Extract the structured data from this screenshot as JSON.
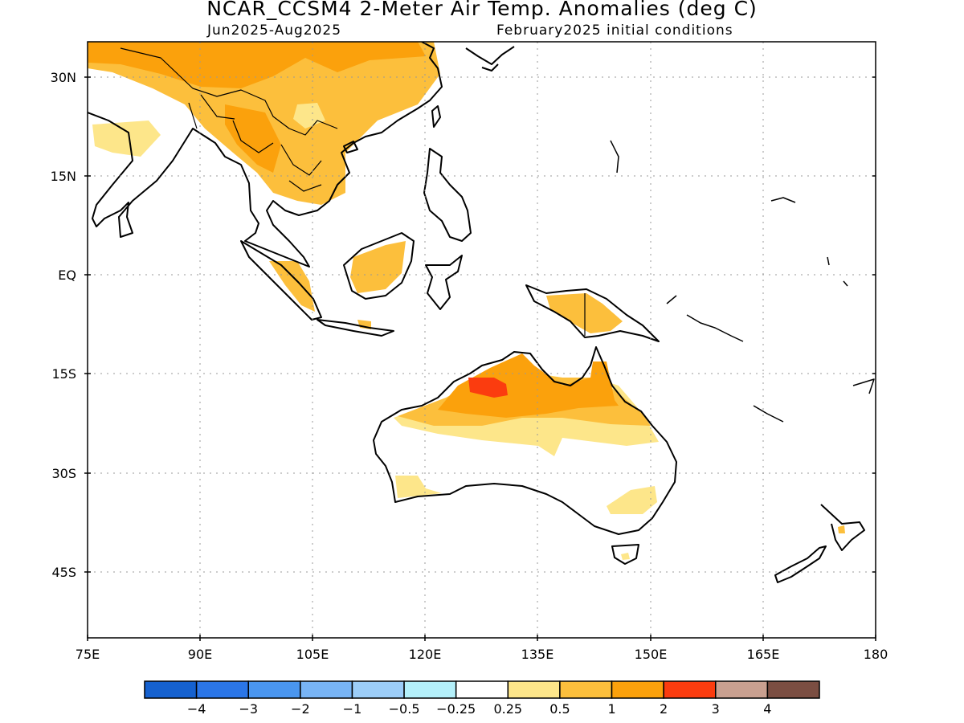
{
  "title": "NCAR_CCSM4 2-Meter Air Temp. Anomalies (deg C)",
  "subtitle_left": "Jun2025-Aug2025",
  "subtitle_right": "February2025 initial conditions",
  "lat_labels": [
    "30N",
    "15N",
    "EQ",
    "15S",
    "30S",
    "45S"
  ],
  "lon_labels": [
    "75E",
    "90E",
    "105E",
    "120E",
    "135E",
    "150E",
    "165E",
    "180"
  ],
  "colorbar": {
    "colors": [
      "#1561cf",
      "#2b76e8",
      "#4a96f0",
      "#78b4f5",
      "#9ccdf8",
      "#b4f0fa",
      "#ffffff",
      "#fde68a",
      "#fcbf3c",
      "#fba10c",
      "#fb3c0f",
      "#c9a090",
      "#7b4e42"
    ],
    "labels": [
      "-4",
      "-3",
      "-2",
      "-1",
      "-0.5",
      "-0.25",
      "0.25",
      "0.5",
      "1",
      "2",
      "3",
      "4"
    ]
  },
  "anomaly_colors": {
    "0.25-0.5": "#fde68a",
    "0.5-1": "#fcbf3c",
    "1-2": "#fba10c",
    "2-3": "#fb3c0f"
  }
}
